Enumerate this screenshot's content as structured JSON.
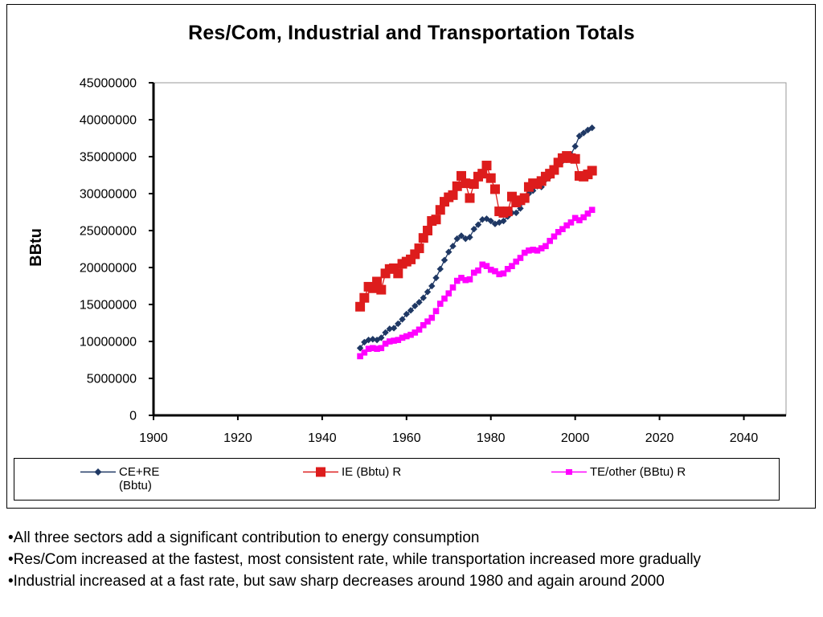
{
  "chart_data": {
    "type": "line",
    "title": "Res/Com, Industrial and Transportation Totals",
    "xlabel": "",
    "ylabel": "BBtu",
    "xlim": [
      1900,
      2050
    ],
    "ylim": [
      0,
      45000000
    ],
    "x_ticks": [
      "1900",
      "1920",
      "1940",
      "1960",
      "1980",
      "2000",
      "2020",
      "2040"
    ],
    "y_ticks": [
      "0",
      "5000000",
      "10000000",
      "15000000",
      "20000000",
      "25000000",
      "30000000",
      "35000000",
      "40000000",
      "45000000"
    ],
    "grid": false,
    "legend_position": "bottom",
    "x": [
      1949,
      1950,
      1951,
      1952,
      1953,
      1954,
      1955,
      1956,
      1957,
      1958,
      1959,
      1960,
      1961,
      1962,
      1963,
      1964,
      1965,
      1966,
      1967,
      1968,
      1969,
      1970,
      1971,
      1972,
      1973,
      1974,
      1975,
      1976,
      1977,
      1978,
      1979,
      1980,
      1981,
      1982,
      1983,
      1984,
      1985,
      1986,
      1987,
      1988,
      1989,
      1990,
      1991,
      1992,
      1993,
      1994,
      1995,
      1996,
      1997,
      1998,
      1999,
      2000,
      2001,
      2002,
      2003,
      2004
    ],
    "series": [
      {
        "name": "CE+RE (Bbtu)",
        "color": "#1f3864",
        "marker": "diamond",
        "values": [
          9100000,
          9900000,
          10200000,
          10300000,
          10200000,
          10500000,
          11200000,
          11700000,
          11800000,
          12400000,
          13000000,
          13700000,
          14200000,
          14800000,
          15300000,
          15900000,
          16700000,
          17500000,
          18600000,
          19800000,
          21000000,
          22100000,
          22900000,
          23900000,
          24300000,
          23900000,
          24100000,
          25200000,
          25800000,
          26500000,
          26600000,
          26300000,
          25900000,
          26100000,
          26300000,
          26900000,
          27400000,
          27400000,
          28000000,
          29400000,
          30000000,
          30400000,
          31000000,
          30900000,
          31900000,
          32300000,
          33200000,
          34100000,
          34400000,
          35000000,
          35300000,
          36400000,
          37800000,
          38200000,
          38600000,
          38900000
        ]
      },
      {
        "name": "IE (Bbtu) R",
        "color": "#dd1c1c",
        "marker": "square",
        "values": [
          14700000,
          15900000,
          17400000,
          17200000,
          18100000,
          17000000,
          19200000,
          19800000,
          19900000,
          19200000,
          20500000,
          20800000,
          21100000,
          21800000,
          22600000,
          24000000,
          25000000,
          26300000,
          26500000,
          27800000,
          28900000,
          29500000,
          29800000,
          31000000,
          32400000,
          31400000,
          29400000,
          31300000,
          32300000,
          32700000,
          33800000,
          32100000,
          30600000,
          27600000,
          27400000,
          27600000,
          29600000,
          28800000,
          29100000,
          29400000,
          30900000,
          31400000,
          31300000,
          31700000,
          32300000,
          32700000,
          33200000,
          34200000,
          34800000,
          35100000,
          34800000,
          34700000,
          32400000,
          32300000,
          32600000,
          33100000
        ]
      },
      {
        "name": "TE/other (BBtu) R",
        "color": "#ff00ff",
        "marker": "square",
        "values": [
          8000000,
          8500000,
          9000000,
          9100000,
          9000000,
          9100000,
          9700000,
          10000000,
          10100000,
          10200000,
          10500000,
          10700000,
          10900000,
          11200000,
          11600000,
          12200000,
          12700000,
          13200000,
          14100000,
          15100000,
          15800000,
          16500000,
          17300000,
          18200000,
          18600000,
          18300000,
          18400000,
          19300000,
          19600000,
          20400000,
          20200000,
          19700000,
          19500000,
          19100000,
          19200000,
          19800000,
          20200000,
          20800000,
          21300000,
          22000000,
          22300000,
          22400000,
          22300000,
          22600000,
          22900000,
          23600000,
          24200000,
          24800000,
          25200000,
          25700000,
          26100000,
          26700000,
          26400000,
          26800000,
          27300000,
          27800000
        ]
      }
    ]
  },
  "legend": {
    "items": [
      {
        "label_line1": "CE+RE",
        "label_line2": "(Bbtu)"
      },
      {
        "label_line1": "IE (Bbtu) R",
        "label_line2": ""
      },
      {
        "label_line1": "TE/other (BBtu) R",
        "label_line2": ""
      }
    ]
  },
  "notes": [
    "•All three sectors add a significant contribution to energy consumption",
    "•Res/Com increased at the fastest, most consistent rate, while transportation increased more gradually",
    "•Industrial increased at a fast rate, but saw sharp decreases around 1980 and again around 2000"
  ]
}
